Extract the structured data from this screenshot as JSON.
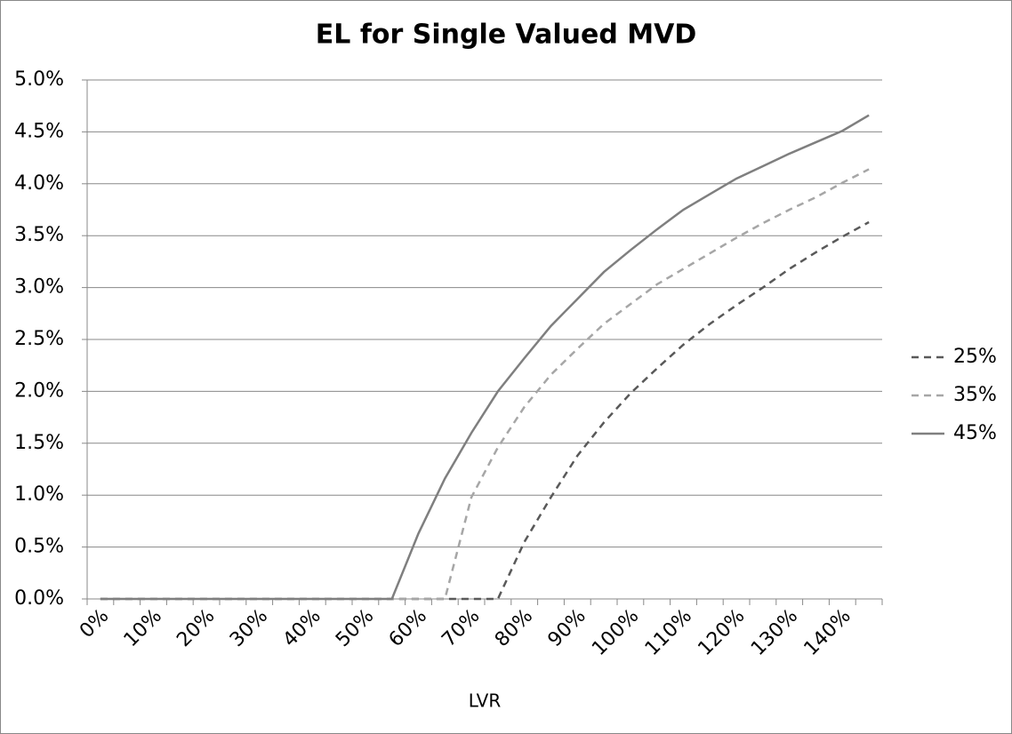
{
  "chart_data": {
    "type": "line",
    "title": "EL for Single Valued MVD",
    "x_label": "LVR",
    "categories": [
      "0%",
      null,
      "10%",
      null,
      "20%",
      null,
      "30%",
      null,
      "40%",
      null,
      "50%",
      null,
      "60%",
      null,
      "70%",
      null,
      "80%",
      null,
      "90%",
      null,
      "100%",
      null,
      "110%",
      null,
      "120%",
      null,
      "130%",
      null,
      "140%",
      null
    ],
    "series": [
      {
        "name": "25%",
        "color": "#595959",
        "dashed": true,
        "values": [
          0,
          0,
          0,
          0,
          0,
          0,
          0,
          0,
          0,
          0,
          0,
          0,
          0,
          0,
          0,
          0,
          0.55,
          0.98,
          1.38,
          1.7,
          1.98,
          2.22,
          2.45,
          2.65,
          2.83,
          3.0,
          3.18,
          3.34,
          3.49,
          3.63
        ]
      },
      {
        "name": "35%",
        "color": "#a6a6a6",
        "dashed": true,
        "values": [
          0,
          0,
          0,
          0,
          0,
          0,
          0,
          0,
          0,
          0,
          0,
          0,
          0,
          0,
          0.98,
          1.46,
          1.85,
          2.16,
          2.41,
          2.65,
          2.84,
          3.03,
          3.18,
          3.33,
          3.48,
          3.62,
          3.75,
          3.87,
          4.01,
          4.14
        ]
      },
      {
        "name": "45%",
        "color": "#7f7f7f",
        "dashed": false,
        "values": [
          0,
          0,
          0,
          0,
          0,
          0,
          0,
          0,
          0,
          0,
          0,
          0,
          0.63,
          1.16,
          1.6,
          2.0,
          2.32,
          2.63,
          2.89,
          3.15,
          3.36,
          3.56,
          3.75,
          3.9,
          4.05,
          4.17,
          4.29,
          4.4,
          4.51,
          4.66
        ]
      }
    ],
    "ylim": [
      0,
      5
    ],
    "yticks": [
      {
        "value": 0,
        "label": "0.0%"
      },
      {
        "value": 0.5,
        "label": "0.5%"
      },
      {
        "value": 1,
        "label": "1.0%"
      },
      {
        "value": 1.5,
        "label": "1.5%"
      },
      {
        "value": 2,
        "label": "2.0%"
      },
      {
        "value": 2.5,
        "label": "2.5%"
      },
      {
        "value": 3,
        "label": "3.0%"
      },
      {
        "value": 3.5,
        "label": "3.5%"
      },
      {
        "value": 4,
        "label": "4.0%"
      },
      {
        "value": 4.5,
        "label": "4.5%"
      },
      {
        "value": 5,
        "label": "5.0%"
      }
    ],
    "grid": true,
    "legend": "right"
  }
}
